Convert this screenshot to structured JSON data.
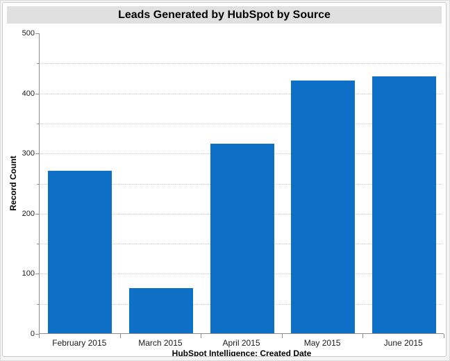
{
  "title_bar": {
    "text": "Leads Generated by HubSpot by Source"
  },
  "chart_data": {
    "type": "bar",
    "title": "Leads Generated by HubSpot by Source",
    "categories": [
      "February 2015",
      "March 2015",
      "April 2015",
      "May 2015",
      "June 2015"
    ],
    "values": [
      270,
      75,
      315,
      420,
      427
    ],
    "xlabel": "HubSpot Intelligence: Created Date",
    "ylabel": "Record Count",
    "ylim": [
      0,
      500
    ],
    "y_major_ticks": [
      0,
      100,
      200,
      300,
      400,
      500
    ],
    "y_minor_interval": 50,
    "gridline_interval": 50,
    "grid_style": "dotted",
    "legend": "none",
    "bar_color": "#0d6fc6",
    "gridline_color": "#c8c8c8",
    "axis_color": "#8c8c8c",
    "title_band_color": "#e0e0e0"
  }
}
